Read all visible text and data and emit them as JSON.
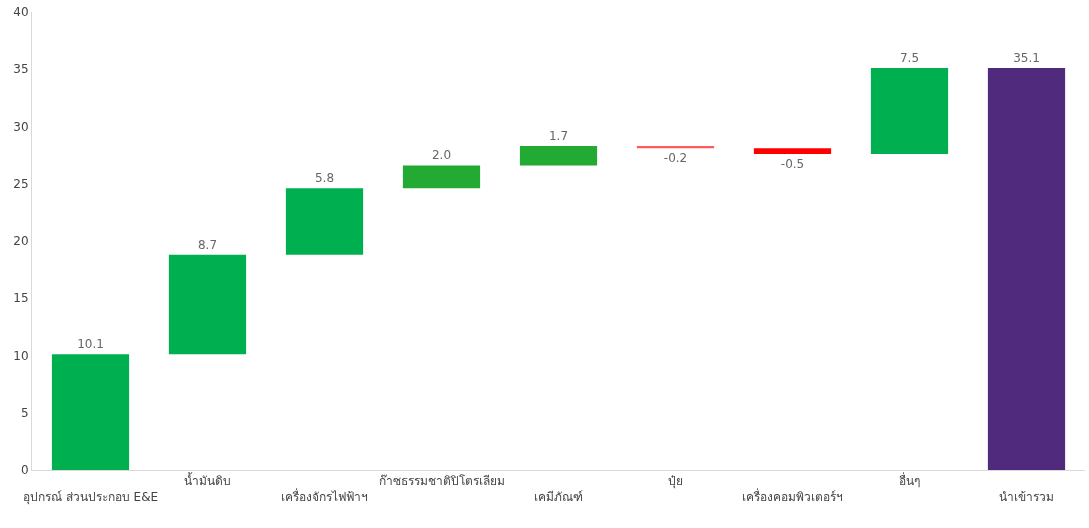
{
  "chart_data": {
    "type": "bar",
    "categories": [
      "อุปกรณ์ ส่วนประกอบ E&E",
      "น้ำมันดิบ",
      "เครื่องจักรไฟฟ้าฯ",
      "ก๊าซธรรมชาติปิโตรเลียม",
      "เคมีภัณฑ์",
      "ปุ๋ย",
      "เครื่องคอมพิวเตอร์ฯ",
      "อื่นๆ",
      "นำเข้ารวม"
    ],
    "values": [
      10.1,
      8.7,
      5.8,
      2.0,
      1.7,
      -0.2,
      -0.5,
      7.5,
      35.1
    ],
    "base": [
      0,
      10.1,
      18.8,
      24.6,
      26.6,
      28.3,
      28.1,
      27.6,
      0
    ],
    "colors": [
      "#00b050",
      "#00b050",
      "#00b050",
      "#22aa33",
      "#22aa33",
      "#ff5b5b",
      "#ff0000",
      "#00b050",
      "#4f2a7d"
    ],
    "value_labels": [
      "10.1",
      "8.7",
      "5.8",
      "2.0",
      "1.7",
      "-0.2",
      "-0.5",
      "7.5",
      "35.1"
    ],
    "ylim": [
      0,
      40
    ],
    "yticks": [
      0,
      5,
      10,
      15,
      20,
      25,
      30,
      35,
      40
    ],
    "grid": false,
    "legend": false
  }
}
